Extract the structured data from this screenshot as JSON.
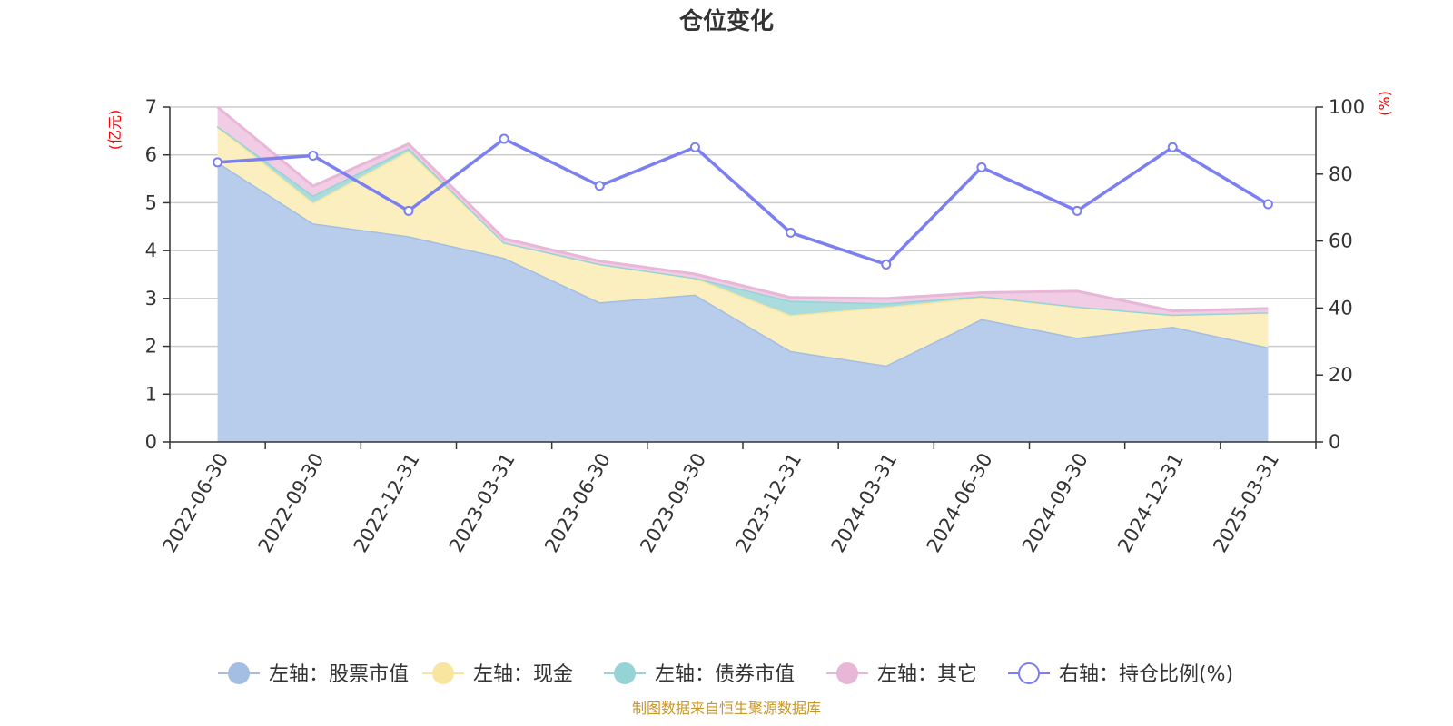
{
  "title": "仓位变化",
  "source": "制图数据来自恒生聚源数据库",
  "left_axis_unit": "(亿元)",
  "right_axis_unit": "(%)",
  "chart_data": {
    "type": "area",
    "title": "仓位变化",
    "categories": [
      "2022-06-30",
      "2022-09-30",
      "2022-12-31",
      "2023-03-31",
      "2023-06-30",
      "2023-09-30",
      "2023-12-31",
      "2024-03-31",
      "2024-06-30",
      "2024-09-30",
      "2024-12-31",
      "2025-03-31"
    ],
    "left_axis": {
      "ylim": [
        0,
        7
      ],
      "ticks": [
        0,
        1,
        2,
        3,
        4,
        5,
        6,
        7
      ],
      "unit": "(亿元)"
    },
    "right_axis": {
      "ylim": [
        0,
        100
      ],
      "ticks": [
        0,
        20,
        40,
        60,
        80,
        100
      ],
      "unit": "(%)"
    },
    "grid": true,
    "legend_position": "bottom",
    "stacked": true,
    "series": [
      {
        "name": "左轴：股票市值",
        "axis": "left",
        "type": "area",
        "color": "#a3bde3",
        "fill": "#b8cdeb",
        "values": [
          5.85,
          4.57,
          4.3,
          3.85,
          2.92,
          3.08,
          1.9,
          1.6,
          2.57,
          2.18,
          2.41,
          1.98
        ]
      },
      {
        "name": "左轴：现金",
        "axis": "left",
        "type": "area",
        "color": "#f8e6a0",
        "fill": "#fbefbf",
        "values": [
          0.75,
          0.43,
          1.78,
          0.32,
          0.8,
          0.35,
          0.75,
          1.22,
          0.45,
          0.65,
          0.25,
          0.73
        ]
      },
      {
        "name": "左轴：债券市值",
        "axis": "left",
        "type": "area",
        "color": "#96d3d5",
        "fill": "#abdcdd",
        "values": [
          0.0,
          0.15,
          0.06,
          0.0,
          0.0,
          0.0,
          0.3,
          0.08,
          0.03,
          0.0,
          0.0,
          0.0
        ]
      },
      {
        "name": "左轴：其它",
        "axis": "left",
        "type": "area",
        "color": "#e8b7d8",
        "fill": "#f0cde4",
        "values": [
          0.4,
          0.2,
          0.09,
          0.08,
          0.06,
          0.08,
          0.07,
          0.1,
          0.07,
          0.32,
          0.08,
          0.08
        ]
      },
      {
        "name": "右轴：持仓比例(%)",
        "axis": "right",
        "type": "line",
        "color": "#7b7ff0",
        "values": [
          83.5,
          85.5,
          69.0,
          90.5,
          76.5,
          88.0,
          62.5,
          53.0,
          82.0,
          69.0,
          88.0,
          71.0
        ]
      }
    ]
  }
}
